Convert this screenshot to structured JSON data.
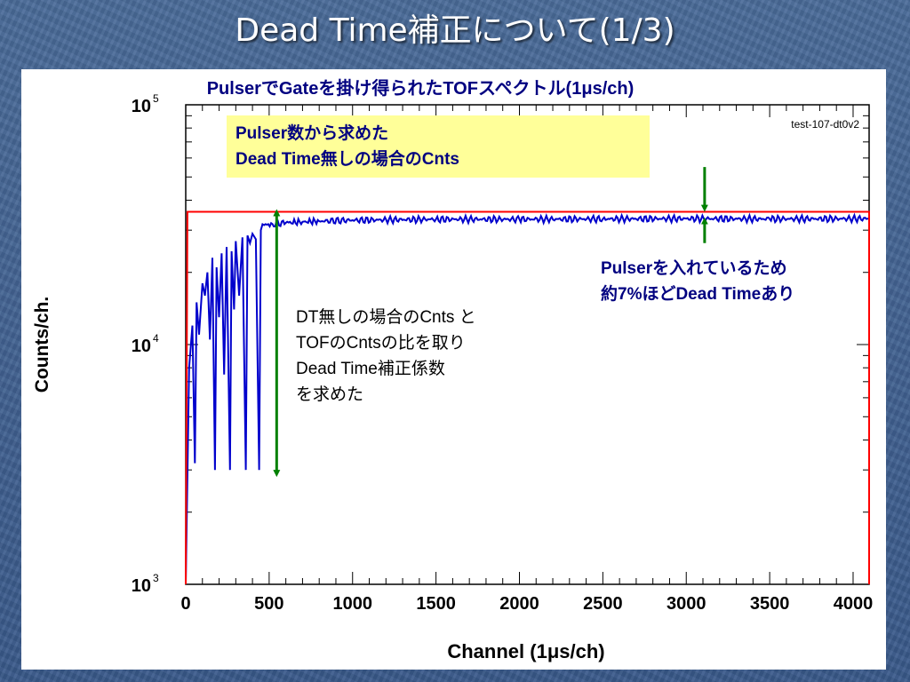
{
  "slide": {
    "title": "Dead Time補正について(1/3)",
    "background_color": "#3f5e8c"
  },
  "chart_data": {
    "type": "line",
    "title": "PulserでGateを掛け得られたTOFスペクトル(1μs/ch)",
    "histogram_name": "test-107-dt0v2",
    "xlabel": "Channel (1μs/ch)",
    "ylabel": "Counts/ch.",
    "xlim": [
      0,
      4096
    ],
    "ylim": [
      1000,
      100000
    ],
    "y_scale": "log",
    "x_ticks": [
      "0",
      "500",
      "1000",
      "1500",
      "2000",
      "2500",
      "3000",
      "3500",
      "4000"
    ],
    "y_ticks": [
      {
        "base": "10",
        "exp": "3",
        "value": 1000
      },
      {
        "base": "10",
        "exp": "4",
        "value": 10000
      },
      {
        "base": "10",
        "exp": "5",
        "value": 100000
      }
    ],
    "grid": false,
    "series": [
      {
        "color": "#0000cc",
        "points": [
          [
            0,
            1000
          ],
          [
            20,
            8000
          ],
          [
            40,
            12000
          ],
          [
            55,
            3200
          ],
          [
            65,
            15000
          ],
          [
            80,
            11000
          ],
          [
            100,
            18000
          ],
          [
            115,
            16000
          ],
          [
            130,
            20000
          ],
          [
            145,
            10500
          ],
          [
            160,
            23000
          ],
          [
            175,
            3000
          ],
          [
            185,
            21000
          ],
          [
            200,
            13000
          ],
          [
            215,
            24000
          ],
          [
            230,
            7500
          ],
          [
            245,
            25500
          ],
          [
            265,
            3000
          ],
          [
            275,
            24500
          ],
          [
            290,
            14000
          ],
          [
            300,
            27000
          ],
          [
            320,
            16000
          ],
          [
            340,
            28000
          ],
          [
            360,
            3000
          ],
          [
            370,
            28500
          ],
          [
            385,
            26500
          ],
          [
            400,
            29000
          ],
          [
            420,
            27500
          ],
          [
            440,
            3000
          ],
          [
            450,
            30000
          ],
          [
            470,
            31500
          ],
          [
            520,
            31800
          ],
          [
            600,
            32200
          ],
          [
            700,
            32500
          ],
          [
            800,
            32700
          ],
          [
            1000,
            33000
          ],
          [
            1500,
            33300
          ],
          [
            2000,
            33300
          ],
          [
            2500,
            33400
          ],
          [
            3000,
            33500
          ],
          [
            3500,
            33400
          ],
          [
            4096,
            33500
          ]
        ]
      },
      {
        "color": "#ff0000",
        "points": [
          [
            0,
            1000
          ],
          [
            10,
            35800
          ],
          [
            4096,
            35800
          ],
          [
            4096,
            1000
          ]
        ]
      }
    ],
    "arrows": [
      {
        "color": "#008000",
        "x": 545,
        "y_from": 35500,
        "y_to": 2900
      },
      {
        "color": "#008000",
        "x": 3110,
        "y_from": 55000,
        "y_to": 37000
      },
      {
        "color": "#008000",
        "x": 3110,
        "y_from": 26500,
        "y_to": 32800
      }
    ],
    "annotations": {
      "pulser_box": [
        "Pulser数から求めた",
        "Dead Time無しの場合のCnts"
      ],
      "dt_note": [
        "DT無しの場合のCnts と",
        "TOFのCntsの比を取り",
        "Dead Time補正係数",
        "を求めた"
      ],
      "deadtime_note": [
        "Pulserを入れているため",
        "約7%ほどDead Timeあり"
      ]
    }
  }
}
